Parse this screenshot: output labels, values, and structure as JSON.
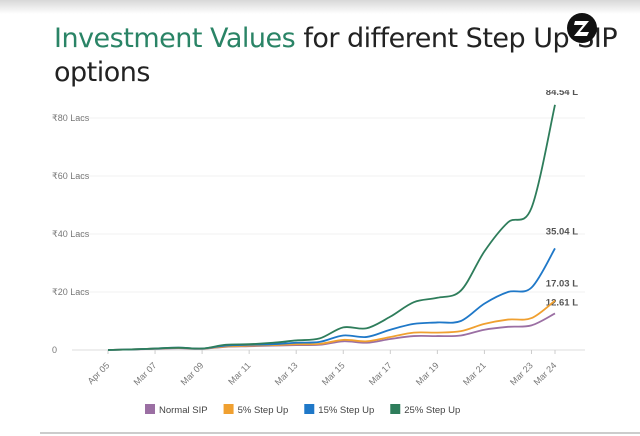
{
  "title": {
    "highlight": "Investment Values",
    "rest": " for different Step Up SIP options"
  },
  "logo": {
    "text": "Z",
    "icon": "z-logo-icon"
  },
  "chart_data": {
    "type": "line",
    "title": "Investment Values for different Step Up SIP options",
    "x": [
      2005,
      2006,
      2007,
      2008,
      2009,
      2010,
      2011,
      2012,
      2013,
      2014,
      2015,
      2016,
      2017,
      2018,
      2019,
      2020,
      2021,
      2022,
      2023,
      2024
    ],
    "xtick_labels": [
      "Apr 05",
      "Mar 07",
      "Mar 09",
      "Mar 11",
      "Mar 13",
      "Mar 15",
      "Mar 17",
      "Mar 19",
      "Mar 21",
      "Mar 23",
      "Mar 24"
    ],
    "xtick_values": [
      2005,
      2007,
      2009,
      2011,
      2013,
      2015,
      2017,
      2019,
      2021,
      2023,
      2024
    ],
    "yticks": [
      0,
      20,
      40,
      60,
      80
    ],
    "ytick_labels": [
      "0",
      "₹20 Lacs",
      "₹40 Lacs",
      "₹60 Lacs",
      "₹80 Lacs"
    ],
    "ylim": [
      0,
      85
    ],
    "grid": true,
    "legend": "bottom",
    "series": [
      {
        "name": "Normal SIP",
        "color": "#9b6fa3",
        "end_label": "12.61 L",
        "values": [
          0,
          0.2,
          0.4,
          0.6,
          0.4,
          1.1,
          1.3,
          1.5,
          1.7,
          1.8,
          3,
          2.5,
          3.8,
          4.8,
          4.8,
          5,
          7,
          8,
          8.5,
          12.61
        ]
      },
      {
        "name": "5% Step Up",
        "color": "#f0a030",
        "end_label": "17.03 L",
        "values": [
          0,
          0.2,
          0.5,
          0.7,
          0.5,
          1.2,
          1.5,
          1.7,
          2,
          2.1,
          3.5,
          3,
          4.5,
          6,
          6,
          6.5,
          9,
          10.5,
          11,
          17.03
        ]
      },
      {
        "name": "15% Step Up",
        "color": "#1f78c8",
        "end_label": "35.04 L",
        "values": [
          0,
          0.2,
          0.5,
          0.8,
          0.5,
          1.5,
          1.8,
          2,
          2.5,
          2.8,
          5,
          4.5,
          7,
          9,
          9.5,
          10,
          16,
          20,
          21.5,
          35.04
        ]
      },
      {
        "name": "25% Step Up",
        "color": "#2e7d5b",
        "end_label": "84.54 L",
        "values": [
          0,
          0.2,
          0.5,
          0.8,
          0.5,
          1.8,
          2,
          2.5,
          3.3,
          4,
          7.8,
          7.5,
          11.5,
          16.5,
          18,
          20.5,
          34,
          44,
          49,
          84.54
        ]
      }
    ]
  }
}
